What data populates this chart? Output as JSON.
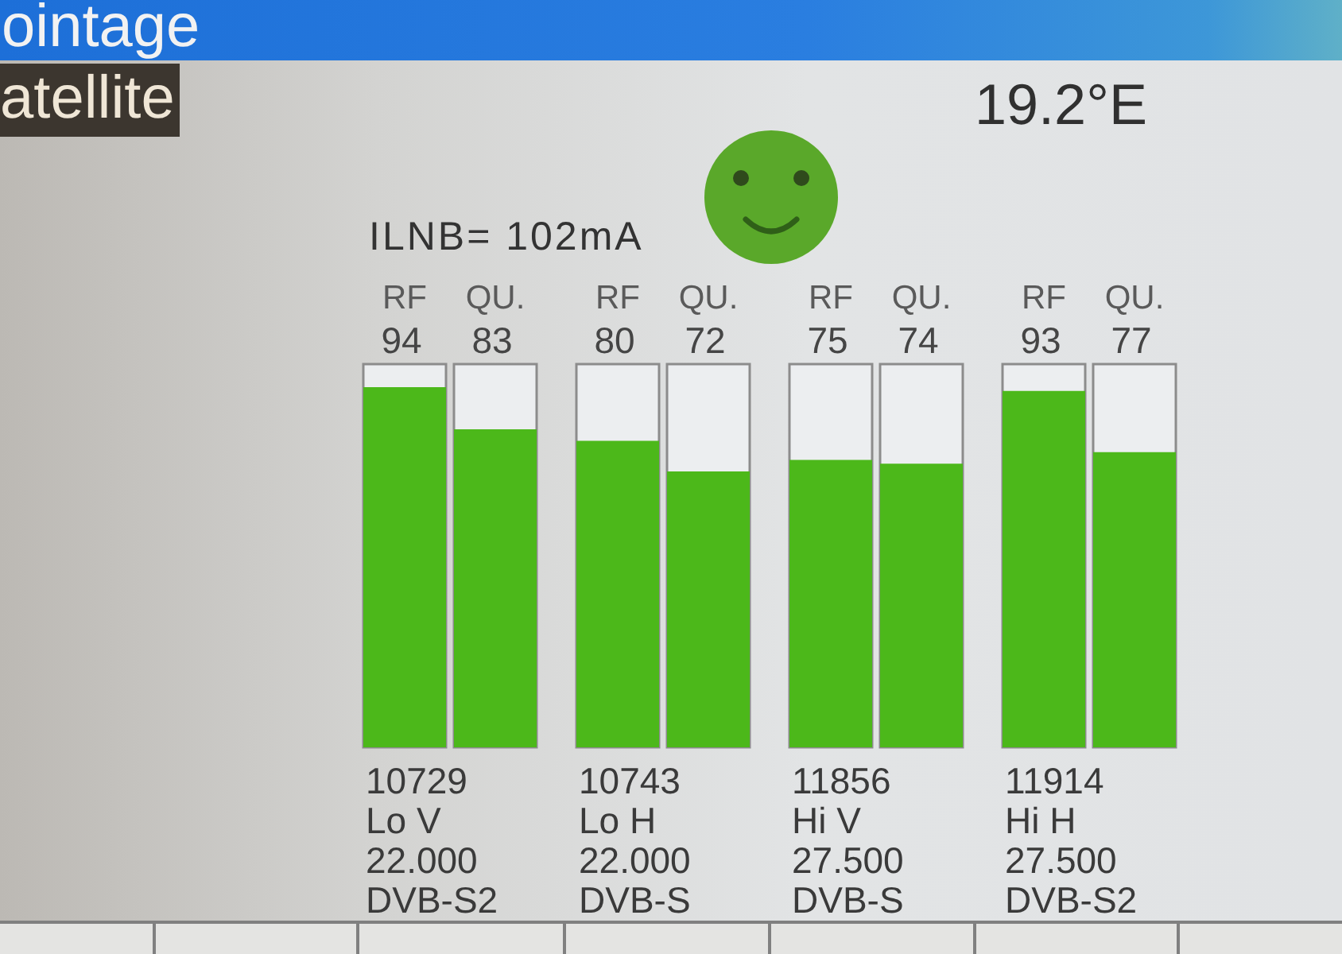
{
  "chart_data": {
    "type": "bar",
    "title": "ointage",
    "subtitle": "atellite",
    "annotations": [
      "19.2°E",
      "ILNB= 102mA"
    ],
    "categories": [
      "10729\nLo V\n22.000\nDVB-S2",
      "10743\nLo H\n22.000\nDVB-S",
      "11856\nHi V\n27.500\nDVB-S",
      "11914\nHi H\n27.500\nDVB-S2"
    ],
    "series": [
      {
        "name": "RF",
        "color": "#4cb81a",
        "values": [
          94,
          80,
          75,
          93
        ]
      },
      {
        "name": "QU.",
        "color": "#4cb81a",
        "values": [
          83,
          72,
          74,
          77
        ]
      }
    ],
    "data_labels": true,
    "tick_labels": "x"
  }
}
